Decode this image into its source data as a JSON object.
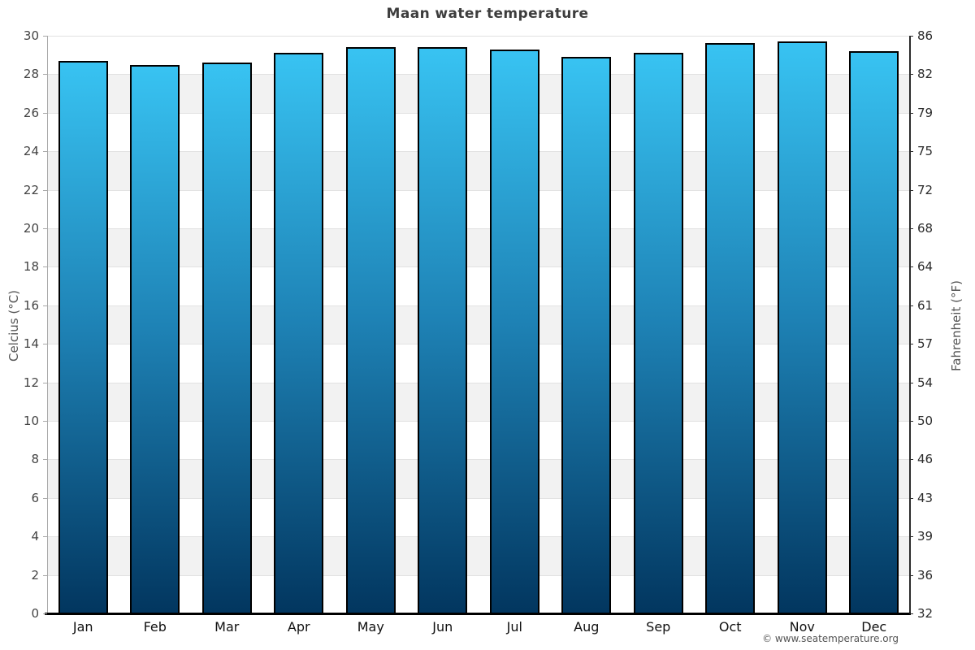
{
  "title": "Maan water temperature",
  "footer": "© www.seatemperature.org",
  "chart_data": {
    "type": "bar",
    "title": "Maan water temperature",
    "categories": [
      "Jan",
      "Feb",
      "Mar",
      "Apr",
      "May",
      "Jun",
      "Jul",
      "Aug",
      "Sep",
      "Oct",
      "Nov",
      "Dec"
    ],
    "values": [
      28.7,
      28.5,
      28.6,
      29.1,
      29.4,
      29.4,
      29.3,
      28.9,
      29.1,
      29.6,
      29.7,
      29.2
    ],
    "unit": "°C",
    "xlabel": "",
    "ylabel_left": "Celcius (°C)",
    "ylabel_right": "Fahrenheit (°F)",
    "ylim": [
      0,
      30
    ],
    "yticks_celsius": [
      0,
      2,
      4,
      6,
      8,
      10,
      12,
      14,
      16,
      18,
      20,
      22,
      24,
      26,
      28,
      30
    ],
    "yticks_fahrenheit": [
      "32",
      "36",
      "39",
      "43",
      "46",
      "50",
      "54",
      "57",
      "61",
      "64",
      "68",
      "72",
      "75",
      "79",
      "82",
      "86"
    ],
    "grid": "horizontal-bands",
    "legend": "none",
    "colors": {
      "bar_top": "#38c3f2",
      "bar_mid": "#1e82b5",
      "bar_bottom": "#02365f",
      "bar_border": "#000000",
      "band": "#f2f2f2",
      "gridline": "#e2e2e2",
      "axis_left": "#a9a9a9",
      "axis_right": "#2b2b2b",
      "axis_bottom": "#000000",
      "title_color": "#3d3d3d",
      "tick_label_left_color": "#444444",
      "tick_label_right_color": "#2b2b2b",
      "month_label_color": "#111111",
      "footer_color": "#555555"
    }
  }
}
